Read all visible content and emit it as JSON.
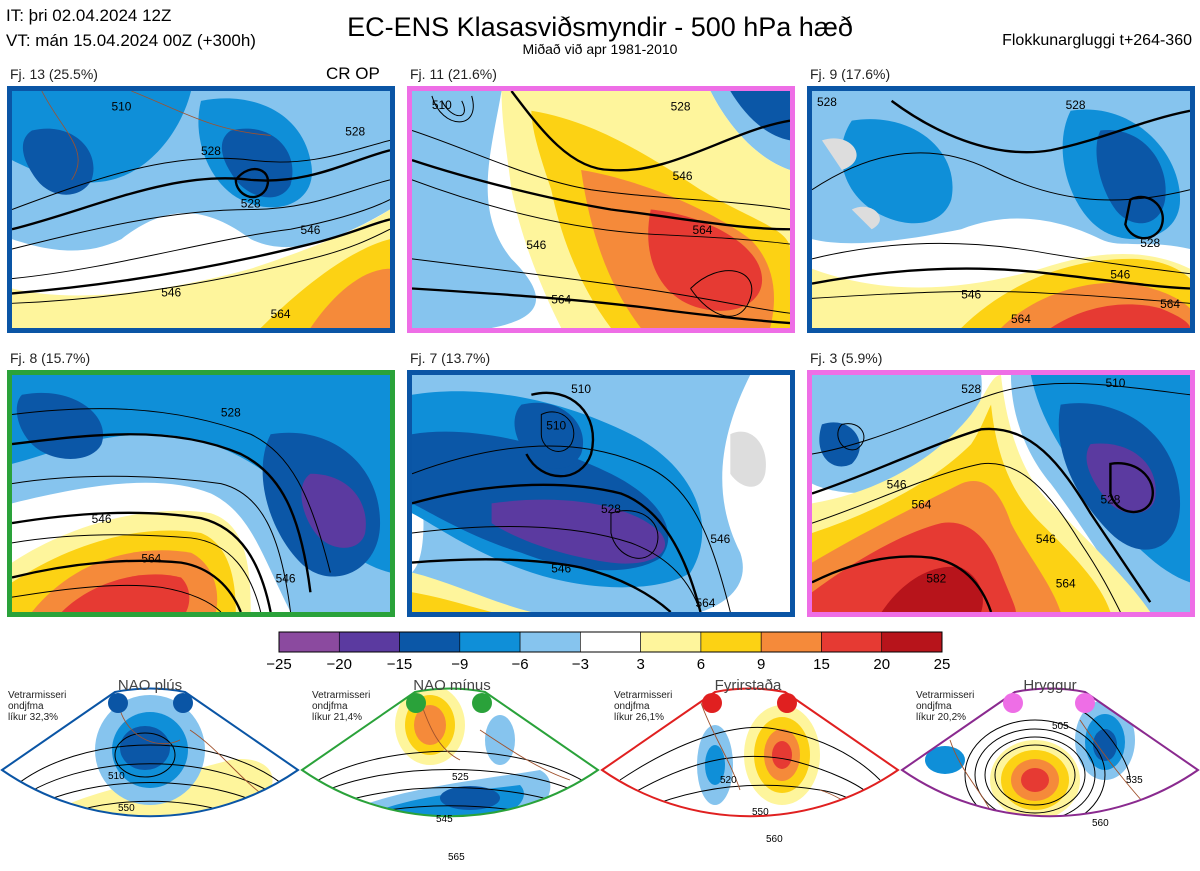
{
  "header": {
    "it_line": "IT: þri 02.04.2024 12Z",
    "vt_line": "VT: mán 15.04.2024 00Z  (+300h)",
    "title": "EC-ENS Klasasviðsmyndir - 500 hPa hæð",
    "subtitle": "Miðað við apr 1981-2010",
    "window": "Flokkunargluggi t+264-360"
  },
  "panels": [
    {
      "label": "Fj. 13 (25.5%)",
      "extra": "CR OP",
      "border": "#0a55a5",
      "contours": [
        "528",
        "510",
        "528",
        "528",
        "546",
        "546",
        "564"
      ]
    },
    {
      "label": "Fj. 11 (21.6%)",
      "extra": "",
      "border": "#ee6ee6",
      "contours": [
        "510",
        "528",
        "546",
        "546",
        "564",
        "564"
      ]
    },
    {
      "label": "Fj. 9 (17.6%)",
      "extra": "",
      "border": "#0a55a5",
      "contours": [
        "528",
        "528",
        "528",
        "546",
        "546",
        "564",
        "564"
      ]
    },
    {
      "label": "Fj. 8 (15.7%)",
      "extra": "",
      "border": "#2aa23a",
      "contours": [
        "528",
        "546",
        "564",
        "546"
      ]
    },
    {
      "label": "Fj. 7 (13.7%)",
      "extra": "",
      "border": "#0a55a5",
      "contours": [
        "510",
        "510",
        "528",
        "546",
        "546",
        "564"
      ]
    },
    {
      "label": "Fj. 3 (5.9%)",
      "extra": "",
      "border": "#ee6ee6",
      "contours": [
        "510",
        "528",
        "546",
        "564",
        "582",
        "546",
        "564",
        "528"
      ]
    }
  ],
  "colorbar": {
    "ticks": [
      "−25",
      "−20",
      "−15",
      "−9",
      "−6",
      "−3",
      "3",
      "6",
      "9",
      "15",
      "20",
      "25"
    ],
    "colors": [
      "#8b4a9f",
      "#5b3aa0",
      "#0b57a7",
      "#0f8fd8",
      "#86c4ee",
      "#ffffff",
      "#fef59c",
      "#fcd214",
      "#f58a3a",
      "#e63a33",
      "#b7141b"
    ]
  },
  "regimes": [
    {
      "title": "NAO plús",
      "note": [
        "Vetrarmisseri",
        "ondjfma",
        "líkur 32,3%"
      ],
      "color": "#0a55a5",
      "dot": "#0a55a5",
      "contours": [
        "510",
        "550"
      ]
    },
    {
      "title": "NAO mínus",
      "note": [
        "Vetrarmisseri",
        "ondjfma",
        "líkur 21,4%"
      ],
      "color": "#2aa23a",
      "dot": "#2aa23a",
      "contours": [
        "525",
        "545",
        "565"
      ]
    },
    {
      "title": "Fyrirstaða",
      "note": [
        "Vetrarmisseri",
        "ondjfma",
        "líkur 26,1%"
      ],
      "color": "#e02020",
      "dot": "#e02020",
      "contours": [
        "520",
        "550",
        "560"
      ]
    },
    {
      "title": "Hryggur",
      "note": [
        "Vetrarmisseri",
        "ondjfma",
        "líkur 20,2%"
      ],
      "color": "#8a2a8f",
      "dot": "#ee6ee6",
      "contours": [
        "505",
        "535",
        "560"
      ]
    }
  ]
}
